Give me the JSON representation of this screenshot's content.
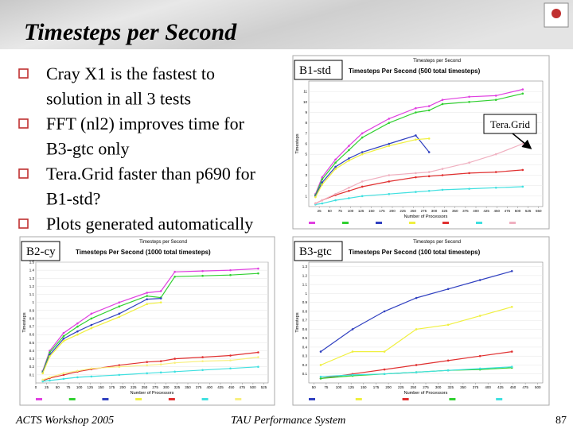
{
  "title": "Timesteps per Second",
  "bullets": [
    [
      "Cray X1 is the fastest to",
      "solution in all 3 tests"
    ],
    [
      "FFT (nl2) improves time for",
      "B3-gtc only"
    ],
    [
      "Tera.Grid faster than p690  for",
      "B1-std?"
    ],
    [
      "Plots generated automatically"
    ]
  ],
  "callout": "Tera.Grid",
  "footer": {
    "left": "ACTS Workshop 2005",
    "center": "TAU Performance System",
    "page": "87"
  },
  "chart_data": [
    {
      "type": "line",
      "tag": "B1-std",
      "title": "Timesteps per Second",
      "subtitle": "Timesteps Per Second (500 total timesteps)",
      "xlabel": "Number of Processors",
      "ylabel": "Timesteps",
      "x": [
        16,
        32,
        64,
        96,
        128,
        192,
        256,
        288,
        320,
        384,
        448,
        512
      ],
      "xlim": [
        0,
        560
      ],
      "xticks": [
        25,
        50,
        75,
        100,
        125,
        150,
        175,
        200,
        225,
        250,
        275,
        300,
        325,
        350,
        375,
        400,
        425,
        450,
        475,
        500,
        525,
        550
      ],
      "ylim": [
        0,
        12
      ],
      "yticks": [
        1,
        2,
        3,
        4,
        5,
        6,
        7,
        8,
        9,
        10,
        11
      ],
      "series": [
        {
          "color": "#e040e0",
          "values": [
            1.2,
            2.8,
            4.5,
            5.8,
            7.0,
            8.4,
            9.4,
            9.6,
            10.2,
            10.5,
            10.6,
            11.2
          ]
        },
        {
          "color": "#30d030",
          "values": [
            1.1,
            2.6,
            4.2,
            5.4,
            6.6,
            8.0,
            9.0,
            9.2,
            9.8,
            10.0,
            10.2,
            10.8
          ]
        },
        {
          "color": "#3040c0",
          "values": [
            1.0,
            2.3,
            3.8,
            4.6,
            5.2,
            6.0,
            6.8,
            5.2,
            null,
            null,
            null,
            null
          ]
        },
        {
          "color": "#f0f040",
          "values": [
            0.9,
            2.1,
            3.6,
            4.4,
            5.0,
            5.8,
            6.4,
            6.5,
            null,
            null,
            null,
            null
          ]
        },
        {
          "color": "#e03030",
          "values": [
            0.3,
            0.6,
            1.1,
            1.5,
            1.9,
            2.4,
            2.8,
            2.9,
            3.0,
            3.2,
            3.3,
            3.5
          ]
        },
        {
          "color": "#40e0e0",
          "values": [
            0.2,
            0.3,
            0.6,
            0.8,
            1.0,
            1.2,
            1.4,
            1.5,
            1.6,
            1.7,
            1.8,
            1.9
          ]
        },
        {
          "color": "#f0b0c0",
          "values": [
            0.3,
            0.6,
            1.2,
            1.8,
            2.4,
            3.0,
            3.2,
            3.3,
            3.6,
            4.2,
            5.0,
            6.0
          ]
        }
      ]
    },
    {
      "type": "line",
      "tag": "B2-cy",
      "title": "Timesteps per Second",
      "subtitle": "Timesteps Per Second (1000 total timesteps)",
      "xlabel": "Number of Processors",
      "ylabel": "Timesteps",
      "x": [
        16,
        32,
        64,
        96,
        128,
        192,
        256,
        288,
        320,
        384,
        448,
        512
      ],
      "xlim": [
        0,
        535
      ],
      "xticks": [
        0,
        25,
        50,
        75,
        100,
        125,
        150,
        175,
        200,
        225,
        250,
        275,
        300,
        325,
        350,
        375,
        400,
        425,
        450,
        475,
        500,
        525
      ],
      "ylim": [
        0,
        1.5
      ],
      "yticks": [
        0.1,
        0.2,
        0.3,
        0.4,
        0.5,
        0.6,
        0.7,
        0.8,
        0.9,
        1.0,
        1.1,
        1.2,
        1.3,
        1.4,
        1.5
      ],
      "series": [
        {
          "color": "#e040e0",
          "values": [
            0.15,
            0.4,
            0.62,
            0.74,
            0.86,
            1.0,
            1.12,
            1.14,
            1.38,
            1.39,
            1.4,
            1.42
          ]
        },
        {
          "color": "#30d030",
          "values": [
            0.14,
            0.38,
            0.58,
            0.7,
            0.8,
            0.95,
            1.08,
            1.06,
            1.32,
            1.33,
            1.34,
            1.36
          ]
        },
        {
          "color": "#3040c0",
          "values": [
            0.13,
            0.35,
            0.55,
            0.64,
            0.72,
            0.86,
            1.04,
            1.05,
            null,
            null,
            null,
            null
          ]
        },
        {
          "color": "#f0f040",
          "values": [
            0.12,
            0.33,
            0.52,
            0.6,
            0.68,
            0.82,
            0.98,
            1.0,
            null,
            null,
            null,
            null
          ]
        },
        {
          "color": "#e03030",
          "values": [
            0.03,
            0.06,
            0.1,
            0.14,
            0.17,
            0.22,
            0.26,
            0.27,
            0.3,
            0.32,
            0.34,
            0.38
          ]
        },
        {
          "color": "#40e0e0",
          "values": [
            0.02,
            0.03,
            0.05,
            0.07,
            0.08,
            0.1,
            0.12,
            0.13,
            0.14,
            0.16,
            0.18,
            0.2
          ]
        },
        {
          "color": "#f8f080",
          "values": [
            0.04,
            0.07,
            0.12,
            0.15,
            0.18,
            0.2,
            0.22,
            0.23,
            0.25,
            0.27,
            0.28,
            0.32
          ]
        }
      ]
    },
    {
      "type": "line",
      "tag": "B3-gtc",
      "title": "Timesteps per Second",
      "subtitle": "Timesteps Per Second (100 total timesteps)",
      "xlabel": "Number of Processors",
      "ylabel": "Timesteps",
      "x": [
        64,
        128,
        192,
        256,
        320,
        384,
        448
      ],
      "xlim": [
        40,
        510
      ],
      "xticks": [
        50,
        75,
        100,
        125,
        150,
        175,
        200,
        225,
        250,
        275,
        300,
        325,
        350,
        375,
        400,
        425,
        450,
        475,
        500
      ],
      "ylim": [
        0,
        1.35
      ],
      "yticks": [
        0.1,
        0.2,
        0.3,
        0.4,
        0.5,
        0.6,
        0.7,
        0.8,
        0.9,
        1.0,
        1.1,
        1.2,
        1.3
      ],
      "series": [
        {
          "color": "#3040c0",
          "values": [
            0.35,
            0.6,
            0.8,
            0.95,
            1.05,
            1.15,
            1.25
          ]
        },
        {
          "color": "#f0f040",
          "values": [
            0.2,
            0.35,
            0.35,
            0.6,
            0.65,
            0.75,
            0.85
          ]
        },
        {
          "color": "#e03030",
          "values": [
            0.05,
            0.1,
            0.15,
            0.2,
            0.25,
            0.3,
            0.35
          ]
        },
        {
          "color": "#30d030",
          "values": [
            0.05,
            0.08,
            0.1,
            0.12,
            0.14,
            0.15,
            0.17
          ]
        },
        {
          "color": "#40e0e0",
          "values": [
            0.07,
            0.09,
            0.1,
            0.12,
            0.14,
            0.16,
            0.18
          ]
        }
      ]
    }
  ]
}
